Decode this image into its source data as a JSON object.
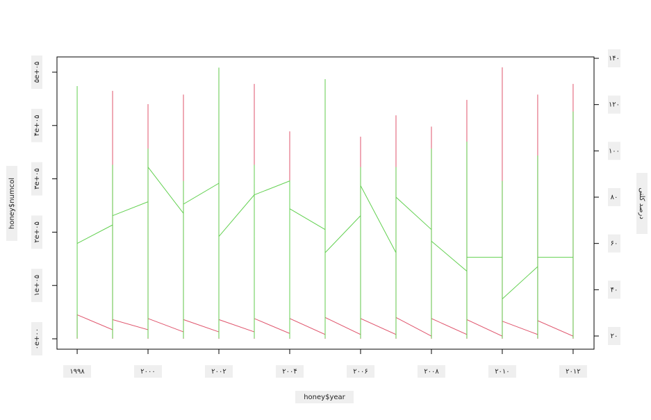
{
  "chart_data": {
    "type": "line",
    "x_label": "honey$year",
    "y_label": "honey$numcol",
    "y2_label": "درصد کلنی",
    "xlim": [
      1997.43,
      2012.59
    ],
    "ylim": [
      -19500,
      528600
    ],
    "y2lim": [
      14.3,
      140.6
    ],
    "xticks": [
      {
        "value": 1998,
        "label": "۱۹۹۸"
      },
      {
        "value": 2000,
        "label": "۲۰۰۰"
      },
      {
        "value": 2002,
        "label": "۲۰۰۲"
      },
      {
        "value": 2004,
        "label": "۲۰۰۴"
      },
      {
        "value": 2006,
        "label": "۲۰۰۶"
      },
      {
        "value": 2008,
        "label": "۲۰۰۸"
      },
      {
        "value": 2010,
        "label": "۲۰۱۰"
      },
      {
        "value": 2012,
        "label": "۲۰۱۲"
      }
    ],
    "yticks": [
      {
        "value": 0,
        "label": "۰e+۰۰"
      },
      {
        "value": 100000,
        "label": "۱e+۰۵"
      },
      {
        "value": 200000,
        "label": "۲e+۰۵"
      },
      {
        "value": 300000,
        "label": "۳e+۰۵"
      },
      {
        "value": 400000,
        "label": "۴e+۰۵"
      },
      {
        "value": 500000,
        "label": "۵e+۰۵"
      }
    ],
    "y2ticks": [
      {
        "value": 20,
        "label": "۲۰"
      },
      {
        "value": 40,
        "label": "۴۰"
      },
      {
        "value": 60,
        "label": "۶۰"
      },
      {
        "value": 80,
        "label": "۸۰"
      },
      {
        "value": 100,
        "label": "۱۰۰"
      },
      {
        "value": 120,
        "label": "۱۲۰"
      },
      {
        "value": 140,
        "label": "۱۴۰"
      }
    ],
    "series": [
      {
        "color": "#df536b",
        "x": [
          1998,
          1998,
          1999,
          1999,
          1999,
          1999,
          2000,
          2000,
          2000,
          2000,
          2001,
          2001,
          2001,
          2001,
          2002,
          2002,
          2002,
          2002,
          2003,
          2003,
          2003,
          2003,
          2004,
          2004,
          2004,
          2004,
          2005,
          2005,
          2005,
          2005,
          2006,
          2006,
          2006,
          2006,
          2007,
          2007,
          2007,
          2007,
          2008,
          2008,
          2008,
          2008,
          2009,
          2009,
          2009,
          2009,
          2010,
          2010,
          2010,
          2010,
          2011,
          2011,
          2011,
          2011,
          2012,
          2012,
          2012
        ],
        "values": [
          0,
          45000,
          17000,
          465000,
          0,
          36000,
          17000,
          440000,
          0,
          38000,
          13000,
          458000,
          0,
          36000,
          13000,
          508000,
          0,
          36000,
          13000,
          478000,
          0,
          38000,
          10000,
          389000,
          0,
          38000,
          8000,
          486000,
          0,
          40000,
          8000,
          379000,
          0,
          38000,
          8000,
          419000,
          0,
          40000,
          5000,
          398000,
          0,
          38000,
          8000,
          448000,
          0,
          36000,
          5000,
          509000,
          0,
          33000,
          8000,
          458000,
          0,
          34000,
          5000,
          478000,
          0
        ]
      },
      {
        "color": "#61d04f",
        "axis": "y2",
        "x": [
          1998,
          1998,
          1998,
          1999,
          1999,
          1999,
          1999,
          2000,
          2000,
          2000,
          2000,
          2001,
          2001,
          2001,
          2001,
          2002,
          2002,
          2002,
          2002,
          2003,
          2003,
          2003,
          2003,
          2004,
          2004,
          2004,
          2004,
          2005,
          2005,
          2005,
          2005,
          2006,
          2006,
          2006,
          2006,
          2007,
          2007,
          2007,
          2007,
          2008,
          2008,
          2008,
          2008,
          2009,
          2009,
          2009,
          2009,
          2010,
          2010,
          2010,
          2010,
          2011,
          2011,
          2011,
          2011,
          2012,
          2012,
          2012,
          2012
        ],
        "values": [
          19,
          128,
          60,
          68,
          19,
          94,
          72,
          78,
          19,
          101,
          93,
          73,
          19,
          87,
          77,
          86,
          19,
          136,
          63,
          81,
          19,
          94,
          81,
          87,
          19,
          87,
          75,
          66,
          19,
          131,
          56,
          72,
          19,
          93,
          85,
          56,
          19,
          93,
          80,
          66,
          19,
          101,
          61,
          48,
          19,
          104,
          54,
          54,
          19,
          87,
          36,
          50,
          19,
          98,
          54,
          54,
          19,
          117,
          54
        ]
      }
    ]
  }
}
